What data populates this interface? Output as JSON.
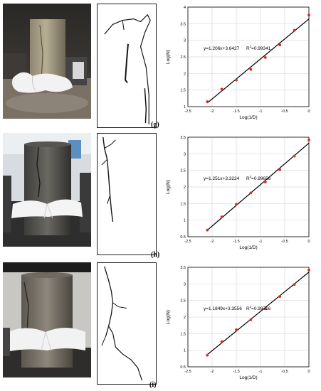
{
  "panels": [
    {
      "label": "(g)",
      "chart_data": {
        "type": "scatter",
        "x": [
          -2.1,
          -1.8,
          -1.5,
          -1.2,
          -0.9,
          -0.6,
          -0.3,
          0.0
        ],
        "y": [
          1.15,
          1.53,
          1.8,
          2.12,
          2.48,
          2.86,
          3.3,
          3.76
        ],
        "fit": {
          "slope": 1.206,
          "intercept": 3.6427
        },
        "equation": "y=1.206x+3.6427",
        "r2_label": "R",
        "r2_value": "=0.99341",
        "xlabel": "Log(1/D)",
        "ylabel": "Log(N)",
        "xlim": [
          -2.5,
          0
        ],
        "ylim": [
          1,
          4
        ],
        "xticks": [
          "-2.5",
          "-2",
          "-1.5",
          "-1",
          "-0.5",
          "0"
        ],
        "yticks": [
          "1",
          "1.5",
          "2",
          "2.5",
          "3",
          "3.5",
          "4"
        ],
        "grid": true
      }
    },
    {
      "label": "(h)",
      "chart_data": {
        "type": "scatter",
        "x": [
          -2.1,
          -1.8,
          -1.5,
          -1.2,
          -0.9,
          -0.6,
          -0.3,
          0.0
        ],
        "y": [
          0.7,
          1.1,
          1.48,
          1.82,
          2.15,
          2.52,
          2.93,
          3.42
        ],
        "fit": {
          "slope": 1.251,
          "intercept": 3.3224
        },
        "equation": "y=1.251x+3.3224",
        "r2_label": "R",
        "r2_value": "=0.99656",
        "xlabel": "Log(1/D)",
        "ylabel": "Log(N)",
        "xlim": [
          -2.5,
          0
        ],
        "ylim": [
          0.5,
          3.5
        ],
        "xticks": [
          "-2.5",
          "-2",
          "-1.5",
          "-1",
          "-0.5",
          "0"
        ],
        "yticks": [
          "0.5",
          "1",
          "1.5",
          "2",
          "2.5",
          "3",
          "3.5"
        ],
        "grid": true
      }
    },
    {
      "label": "(i)",
      "chart_data": {
        "type": "scatter",
        "x": [
          -2.1,
          -1.8,
          -1.5,
          -1.2,
          -0.9,
          -0.6,
          -0.3,
          0.0
        ],
        "y": [
          0.85,
          1.26,
          1.62,
          1.92,
          2.25,
          2.62,
          2.98,
          3.42
        ],
        "fit": {
          "slope": 1.1849,
          "intercept": 3.3556
        },
        "equation": "y=1.1849x+3.3556",
        "r2_label": "R",
        "r2_value": "=0.99716",
        "xlabel": "Log(1/D)",
        "ylabel": "Log(N)",
        "xlim": [
          -2.5,
          0
        ],
        "ylim": [
          0.5,
          3.5
        ],
        "xticks": [
          "-2.5",
          "-2",
          "-1.5",
          "-1",
          "-0.5",
          "0"
        ],
        "yticks": [
          "0.5",
          "1",
          "1.5",
          "2",
          "2.5",
          "3",
          "3.5"
        ],
        "grid": true
      }
    }
  ],
  "colors": {
    "points": "#e8261e",
    "fit_line": "#000000",
    "grid": "#cccccc"
  }
}
